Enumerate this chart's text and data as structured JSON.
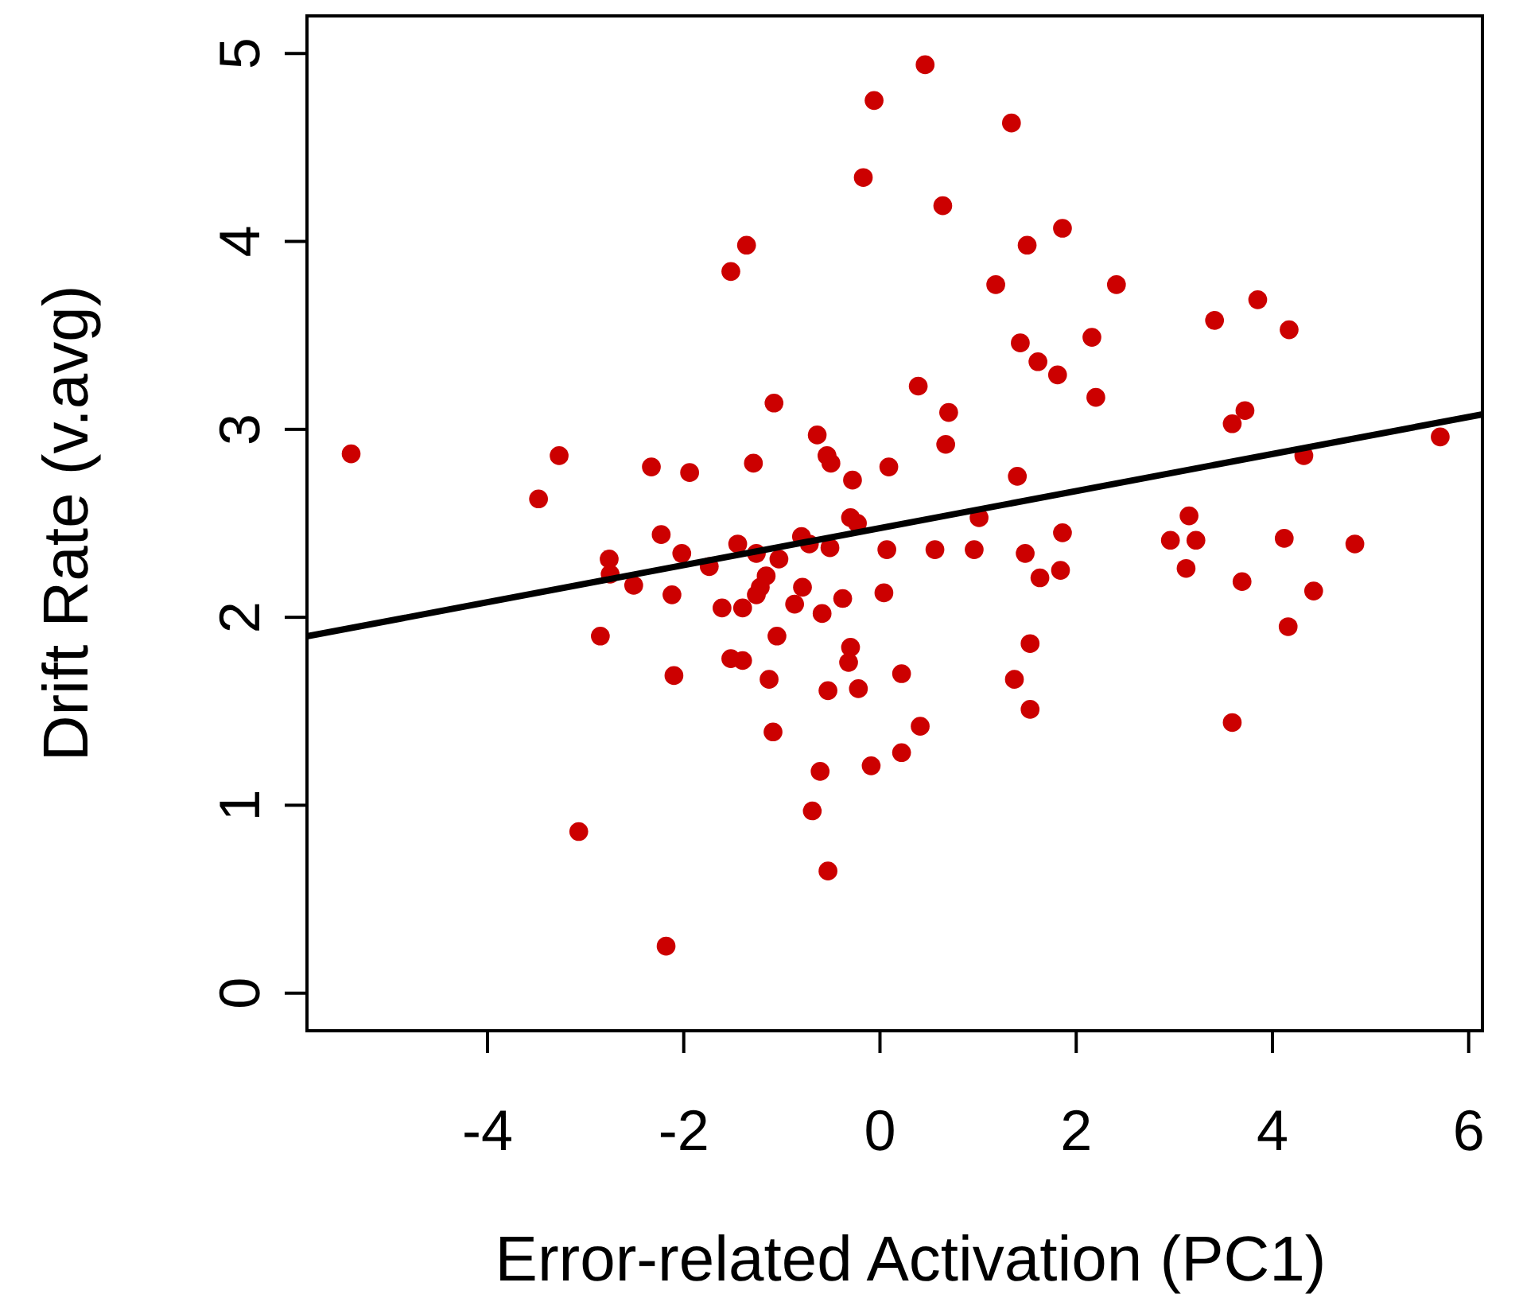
{
  "chart_data": {
    "type": "scatter",
    "xlabel": "Error-related Activation (PC1)",
    "ylabel": "Drift Rate (v.avg)",
    "xlim": [
      -5.84,
      6.14
    ],
    "ylim": [
      -0.2,
      5.2
    ],
    "xticks": [
      -4,
      -2,
      0,
      2,
      4,
      6
    ],
    "yticks": [
      0,
      1,
      2,
      3,
      4,
      5
    ],
    "grid": false,
    "series": [
      {
        "color": "#cc0000",
        "marker": "circle",
        "x": [
          -0.06,
          -0.17,
          -1.36,
          -1.52,
          -1.08,
          -5.39,
          -3.27,
          -3.48,
          -2.33,
          -1.94,
          -1.29,
          -0.64,
          -0.54,
          -0.5,
          -0.28,
          0.09,
          -0.3,
          -0.23,
          0.46,
          1.34,
          0.64,
          1.86,
          1.5,
          1.18,
          2.41,
          3.41,
          3.85,
          4.17,
          1.43,
          1.61,
          1.81,
          2.16,
          2.2,
          0.39,
          0.7,
          0.67,
          1.4,
          3.72,
          3.59,
          4.32,
          5.71,
          1.01,
          3.15,
          -2.23,
          -2.76,
          -2.75,
          -2.51,
          -2.02,
          -1.74,
          -1.45,
          -1.26,
          -1.03,
          -0.8,
          -0.72,
          -0.51,
          0.07,
          -1.16,
          -1.22,
          -1.26,
          -2.12,
          -1.61,
          -1.4,
          -0.79,
          -0.87,
          -0.59,
          -0.38,
          0.04,
          -2.85,
          -1.05,
          -1.52,
          -1.4,
          -0.3,
          -0.32,
          -2.1,
          -1.13,
          -0.53,
          -0.22,
          0.22,
          -1.09,
          -0.61,
          -0.09,
          0.22,
          -0.69,
          -3.07,
          -0.53,
          -2.18,
          0.56,
          0.96,
          1.86,
          1.48,
          1.63,
          1.84,
          2.96,
          3.22,
          3.12,
          4.12,
          4.84,
          3.69,
          4.42,
          4.16,
          1.53,
          1.37,
          1.53,
          0.41,
          3.59
        ],
        "values": [
          4.75,
          4.34,
          3.98,
          3.84,
          3.14,
          2.87,
          2.86,
          2.63,
          2.8,
          2.77,
          2.82,
          2.97,
          2.86,
          2.82,
          2.73,
          2.8,
          2.53,
          2.5,
          4.94,
          4.63,
          4.19,
          4.07,
          3.98,
          3.77,
          3.77,
          3.58,
          3.69,
          3.53,
          3.46,
          3.36,
          3.29,
          3.49,
          3.17,
          3.23,
          3.09,
          2.92,
          2.75,
          3.1,
          3.03,
          2.86,
          2.96,
          2.53,
          2.54,
          2.44,
          2.31,
          2.23,
          2.17,
          2.34,
          2.27,
          2.39,
          2.34,
          2.31,
          2.43,
          2.39,
          2.37,
          2.36,
          2.22,
          2.16,
          2.12,
          2.12,
          2.05,
          2.05,
          2.16,
          2.07,
          2.02,
          2.1,
          2.13,
          1.9,
          1.9,
          1.78,
          1.77,
          1.84,
          1.76,
          1.69,
          1.67,
          1.61,
          1.62,
          1.7,
          1.39,
          1.18,
          1.21,
          1.28,
          0.97,
          0.86,
          0.65,
          0.25,
          2.36,
          2.36,
          2.45,
          2.34,
          2.21,
          2.25,
          2.41,
          2.41,
          2.26,
          2.42,
          2.39,
          2.19,
          2.14,
          1.95,
          1.86,
          1.67,
          1.51,
          1.42,
          1.44
        ]
      },
      {
        "type": "line",
        "color": "#000000",
        "line_style": "solid",
        "marker": "none",
        "x": [
          -5.83,
          6.14
        ],
        "values": [
          1.9,
          3.08
        ]
      }
    ]
  }
}
